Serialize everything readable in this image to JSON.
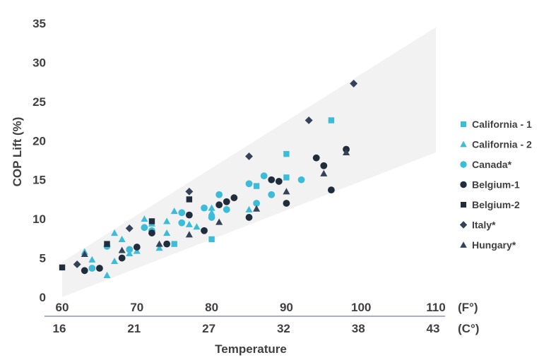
{
  "chart_data": {
    "type": "scatter",
    "ylabel": "COP Lift (%)",
    "xlabel": "Temperature",
    "ylim": [
      0,
      35
    ],
    "y_ticks": [
      "0",
      "5",
      "10",
      "15",
      "20",
      "25",
      "30",
      "35"
    ],
    "x_fahrenheit": {
      "unit_label": "(F°)",
      "range": [
        60,
        110
      ],
      "ticks": [
        "60",
        "70",
        "80",
        "90",
        "100",
        "110"
      ]
    },
    "x_celsius": {
      "unit_label": "(C°)",
      "ticks": [
        "16",
        "21",
        "27",
        "32",
        "38",
        "43"
      ]
    },
    "grid": false,
    "legend_position": "right",
    "band": {
      "color": "#f2f2f2",
      "lower": [
        [
          60,
          0
        ],
        [
          110,
          18.5
        ]
      ],
      "upper": [
        [
          60,
          4.5
        ],
        [
          110,
          34.5
        ]
      ]
    },
    "series": [
      {
        "name": "California - 1",
        "marker": "square",
        "color": "#3dbcd8",
        "points": [
          [
            75,
            6.8
          ],
          [
            80,
            7.4
          ],
          [
            86,
            14.2
          ],
          [
            90,
            15.3
          ],
          [
            90,
            18.3
          ],
          [
            96,
            22.6
          ]
        ]
      },
      {
        "name": "California - 2",
        "marker": "triangle",
        "color": "#3dbcd8",
        "points": [
          [
            63,
            5.8
          ],
          [
            64,
            4.8
          ],
          [
            66,
            2.8
          ],
          [
            67,
            4.6
          ],
          [
            67,
            8.2
          ],
          [
            68,
            7.4
          ],
          [
            69,
            5.6
          ],
          [
            70,
            5.9
          ],
          [
            71,
            10.0
          ],
          [
            72,
            9.4
          ],
          [
            73,
            6.3
          ],
          [
            74,
            9.7
          ],
          [
            74,
            8.2
          ],
          [
            75,
            11.0
          ],
          [
            77,
            9.3
          ],
          [
            78,
            9.0
          ],
          [
            80,
            10.8
          ],
          [
            80,
            11.4
          ],
          [
            85,
            11.2
          ]
        ]
      },
      {
        "name": "Canada*",
        "marker": "circle",
        "color": "#3dbcd8",
        "points": [
          [
            64,
            3.7
          ],
          [
            66,
            6.5
          ],
          [
            69,
            6.1
          ],
          [
            71,
            8.9
          ],
          [
            72,
            8.5
          ],
          [
            76,
            10.8
          ],
          [
            76,
            9.5
          ],
          [
            79,
            11.4
          ],
          [
            80,
            10.2
          ],
          [
            81,
            13.1
          ],
          [
            82,
            11.2
          ],
          [
            85,
            14.5
          ],
          [
            86,
            12.0
          ],
          [
            87,
            15.5
          ],
          [
            88,
            13.1
          ],
          [
            92,
            15.0
          ]
        ]
      },
      {
        "name": "Belgium-1",
        "marker": "circle",
        "color": "#1f2d3d",
        "points": [
          [
            63,
            3.4
          ],
          [
            65,
            3.7
          ],
          [
            68,
            5.0
          ],
          [
            70,
            6.4
          ],
          [
            72,
            8.2
          ],
          [
            74,
            6.8
          ],
          [
            77,
            10.5
          ],
          [
            79,
            8.5
          ],
          [
            81,
            11.8
          ],
          [
            82,
            12.2
          ],
          [
            83,
            12.7
          ],
          [
            85,
            10.2
          ],
          [
            88,
            15.0
          ],
          [
            89,
            14.8
          ],
          [
            90,
            12.0
          ],
          [
            94,
            17.8
          ],
          [
            95,
            16.8
          ],
          [
            96,
            13.7
          ],
          [
            98,
            18.9
          ]
        ]
      },
      {
        "name": "Belgium-2",
        "marker": "square",
        "color": "#1f2d3d",
        "points": [
          [
            60,
            3.8
          ],
          [
            66,
            6.8
          ],
          [
            72,
            9.7
          ],
          [
            77,
            12.5
          ]
        ]
      },
      {
        "name": "Italy*",
        "marker": "diamond",
        "color": "#34425a",
        "points": [
          [
            62,
            4.2
          ],
          [
            69,
            8.8
          ],
          [
            77,
            13.5
          ],
          [
            85,
            18.0
          ],
          [
            93,
            22.6
          ],
          [
            99,
            27.3
          ]
        ]
      },
      {
        "name": "Hungary*",
        "marker": "triangle",
        "color": "#34425a",
        "points": [
          [
            63,
            5.5
          ],
          [
            68,
            6.0
          ],
          [
            73,
            6.8
          ],
          [
            77,
            8.0
          ],
          [
            81,
            9.6
          ],
          [
            86,
            11.3
          ],
          [
            90,
            13.5
          ],
          [
            95,
            15.8
          ],
          [
            98,
            18.5
          ]
        ]
      }
    ]
  }
}
